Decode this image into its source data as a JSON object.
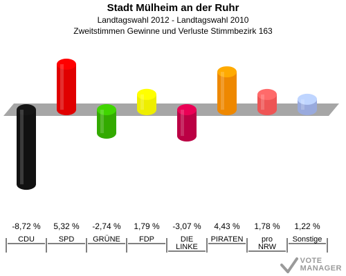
{
  "header": {
    "title": "Stadt Mülheim an der Ruhr",
    "subtitle": "Landtagswahl 2012 - Landtagswahl 2010",
    "description": "Zweitstimmen Gewinne und Verluste Stimmbezirk 163"
  },
  "chart_data": {
    "type": "bar",
    "title": "Stadt Mülheim an der Ruhr",
    "subtitle": "Landtagswahl 2012 - Landtagswahl 2010",
    "description": "Zweitstimmen Gewinne und Verluste Stimmbezirk 163",
    "categories": [
      "CDU",
      "SPD",
      "GRÜNE",
      "FDP",
      "DIE LINKE",
      "PIRATEN",
      "pro NRW",
      "Sonstige"
    ],
    "category_lines": [
      [
        "CDU"
      ],
      [
        "SPD"
      ],
      [
        "GRÜNE"
      ],
      [
        "FDP"
      ],
      [
        "DIE",
        "LINKE"
      ],
      [
        "PIRATEN"
      ],
      [
        "pro",
        "NRW"
      ],
      [
        "Sonstige"
      ]
    ],
    "values": [
      -8.72,
      5.32,
      -2.74,
      1.79,
      -3.07,
      4.43,
      1.78,
      1.22
    ],
    "value_labels": [
      "-8,72 %",
      "5,32 %",
      "-2,74 %",
      "1,79 %",
      "-3,07 %",
      "4,43 %",
      "1,78 %",
      "1,22 %"
    ],
    "colors": [
      "#111111",
      "#e00000",
      "#33aa00",
      "#eeee00",
      "#bb0044",
      "#ee8800",
      "#ee5555",
      "#99aadd"
    ],
    "ylim": [
      -8.72,
      5.32
    ],
    "grid": false,
    "legend": "none"
  },
  "watermark": {
    "line1": "VOTE",
    "line2": "MANAGER"
  }
}
